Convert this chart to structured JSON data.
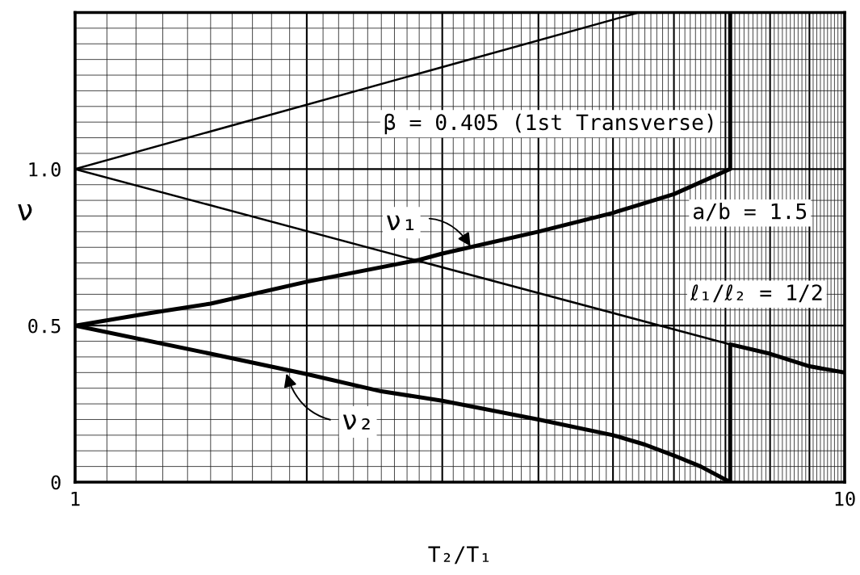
{
  "chart_data": {
    "type": "line",
    "xlabel": "T₂/T₁",
    "ylabel": "ν",
    "log": "x",
    "xlim": [
      1,
      10
    ],
    "ylim": [
      0,
      1.5
    ],
    "xticks": [
      1,
      {
        "value": 2,
        "label": null
      },
      {
        "value": 3,
        "label": null
      },
      {
        "value": 4,
        "label": null
      },
      {
        "value": 5,
        "label": null
      },
      {
        "value": 6,
        "label": null
      },
      {
        "value": 7,
        "label": null
      },
      {
        "value": 8,
        "label": null
      },
      {
        "value": 9,
        "label": null
      },
      10
    ],
    "yticks": [
      0,
      0.5,
      {
        "value": 1,
        "label": "1.0"
      }
    ],
    "grid": true,
    "series": [
      {
        "color": "#000000",
        "x": [
          1,
          1.25,
          1.5,
          2,
          2.8,
          3,
          4,
          5,
          6,
          7.1,
          7.1
        ],
        "values": [
          0.5,
          0.54,
          0.57,
          0.64,
          0.71,
          0.73,
          0.8,
          0.86,
          0.92,
          1.0,
          1.5
        ]
      },
      {
        "color": "#000000",
        "x": [
          1,
          1.5,
          2,
          2.5,
          3,
          4,
          5,
          5.5,
          6,
          6.5,
          7.1,
          7.1,
          8,
          9,
          10
        ],
        "values": [
          0.5,
          0.41,
          0.345,
          0.29,
          0.26,
          0.2,
          0.15,
          0.12,
          0.085,
          0.05,
          0,
          0.44,
          0.41,
          0.37,
          0.35
        ]
      },
      {
        "color": "#000000",
        "x": [
          1,
          5.4
        ],
        "values": [
          1.0,
          1.5
        ]
      },
      {
        "color": "#000000",
        "x": [
          1,
          7.1
        ],
        "values": [
          1.0,
          0.44
        ]
      }
    ],
    "annotations": [
      "β = 0.405 (1st Transverse)",
      "a/b = 1.5",
      "ℓ₁/ℓ₂ = 1/2",
      {
        "text": "ν₁",
        "x": 3.27,
        "y": 0.75
      },
      {
        "text": "ν₂",
        "x": 1.88,
        "y": 0.35
      }
    ]
  }
}
